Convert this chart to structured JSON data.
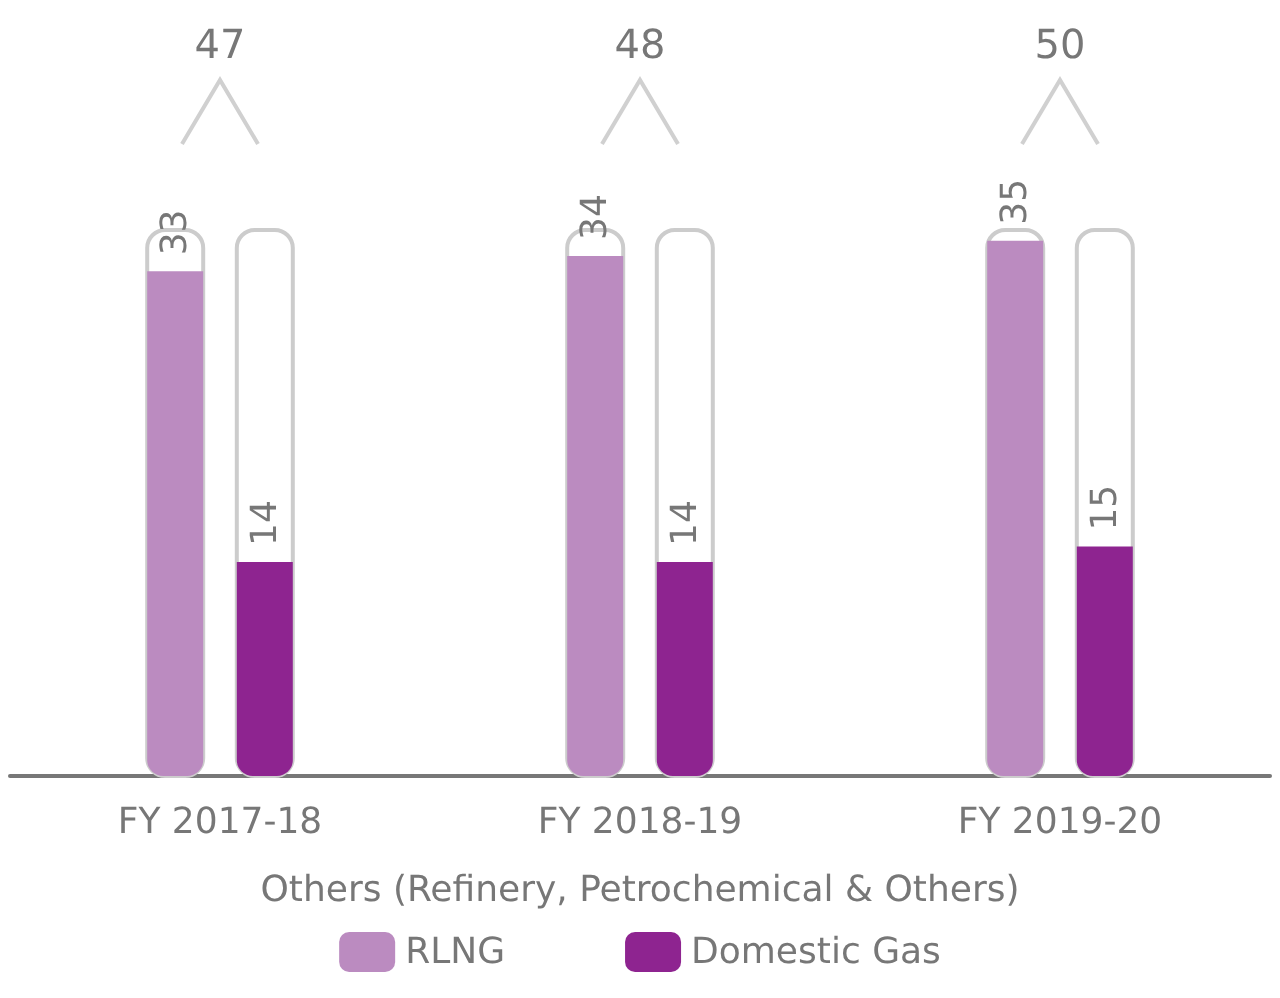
{
  "chart_data": {
    "type": "bar",
    "xlabel": "Others (Refinery, Petrochemical & Others)",
    "categories": [
      "FY 2017-18",
      "FY 2018-19",
      "FY 2019-20"
    ],
    "series": [
      {
        "name": "RLNG",
        "color": "#bb8bc0",
        "values": [
          33,
          34,
          35
        ]
      },
      {
        "name": "Domestic Gas",
        "color": "#8e2490",
        "values": [
          14,
          14,
          15
        ]
      }
    ],
    "annotations": [
      "47",
      "48",
      "50"
    ],
    "data_labels": true,
    "legend": "bottom",
    "grid": false
  }
}
